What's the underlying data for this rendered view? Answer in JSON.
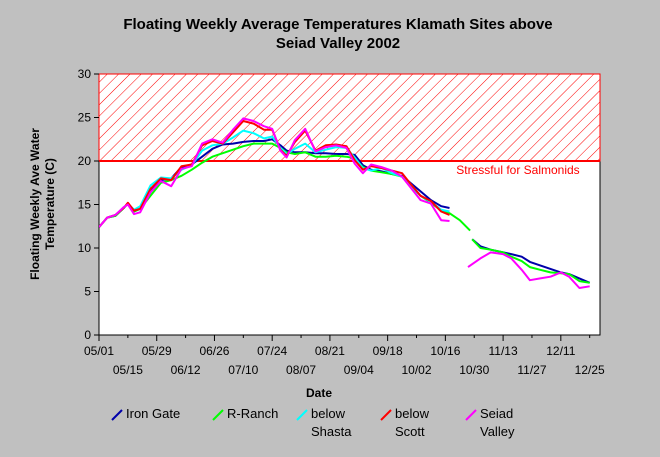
{
  "chart_data": {
    "type": "line",
    "title_line1": "Floating Weekly Average Temperatures Klamath Sites above",
    "title_line2": "Seiad Valley 2002",
    "ylabel_line1": "Floating Weekly Ave Water",
    "ylabel_line2": "Temperature (C)",
    "xlabel": "Date",
    "ylim": [
      0,
      30
    ],
    "yticks": [
      "0",
      "5",
      "10",
      "15",
      "20",
      "25",
      "30"
    ],
    "xlim": [
      0,
      243
    ],
    "xticks_upper": [
      {
        "label": "05/01",
        "day": 0
      },
      {
        "label": "05/29",
        "day": 28
      },
      {
        "label": "06/26",
        "day": 56
      },
      {
        "label": "07/24",
        "day": 84
      },
      {
        "label": "08/21",
        "day": 112
      },
      {
        "label": "09/18",
        "day": 140
      },
      {
        "label": "10/16",
        "day": 168
      },
      {
        "label": "11/13",
        "day": 196
      },
      {
        "label": "12/11",
        "day": 224
      }
    ],
    "xticks_lower": [
      {
        "label": "05/15",
        "day": 14
      },
      {
        "label": "06/12",
        "day": 42
      },
      {
        "label": "07/10",
        "day": 70
      },
      {
        "label": "08/07",
        "day": 98
      },
      {
        "label": "09/04",
        "day": 126
      },
      {
        "label": "10/02",
        "day": 154
      },
      {
        "label": "10/30",
        "day": 182
      },
      {
        "label": "11/27",
        "day": 210
      },
      {
        "label": "12/25",
        "day": 238
      }
    ],
    "threshold": {
      "value": 20,
      "label": "Stressful for Salmonids",
      "color": "#ff0000"
    },
    "grid": false,
    "legend_position": "bottom",
    "series": [
      {
        "name": "Iron Gate",
        "name_line2": "",
        "color": "#0000aa",
        "segments": [
          [
            [
              0,
              12.4
            ],
            [
              4,
              13.5
            ],
            [
              8,
              13.7
            ],
            [
              12,
              14.6
            ],
            [
              14,
              15.1
            ],
            [
              17,
              14.2
            ],
            [
              20,
              14.5
            ],
            [
              25,
              16.5
            ],
            [
              30,
              17.8
            ],
            [
              35,
              18.0
            ],
            [
              40,
              19.3
            ],
            [
              45,
              19.6
            ],
            [
              50,
              20.5
            ],
            [
              55,
              21.4
            ],
            [
              60,
              21.9
            ],
            [
              65,
              22.0
            ],
            [
              70,
              22.2
            ],
            [
              75,
              22.3
            ],
            [
              80,
              22.3
            ],
            [
              84,
              22.5
            ],
            [
              88,
              21.8
            ],
            [
              91,
              21.2
            ],
            [
              95,
              21.0
            ],
            [
              100,
              21.0
            ],
            [
              105,
              20.9
            ],
            [
              110,
              20.9
            ],
            [
              115,
              20.8
            ],
            [
              120,
              20.8
            ],
            [
              124,
              20.7
            ],
            [
              128,
              19.5
            ],
            [
              132,
              19.0
            ],
            [
              137,
              18.8
            ],
            [
              142,
              18.5
            ],
            [
              147,
              18.3
            ],
            [
              151,
              17.5
            ],
            [
              156,
              16.5
            ],
            [
              161,
              15.5
            ],
            [
              166,
              14.8
            ],
            [
              170,
              14.6
            ]
          ],
          [
            [
              181,
              11.0
            ],
            [
              185,
              10.2
            ],
            [
              190,
              9.8
            ],
            [
              196,
              9.5
            ],
            [
              200,
              9.3
            ],
            [
              205,
              9.0
            ],
            [
              209,
              8.4
            ],
            [
              214,
              8.0
            ],
            [
              219,
              7.6
            ],
            [
              224,
              7.2
            ],
            [
              228,
              7.0
            ],
            [
              233,
              6.5
            ],
            [
              238,
              6.0
            ]
          ]
        ]
      },
      {
        "name": "R-Ranch",
        "name_line2": "",
        "color": "#00ff00",
        "segments": [
          [
            [
              0,
              12.4
            ],
            [
              4,
              13.5
            ],
            [
              8,
              13.7
            ],
            [
              12,
              14.6
            ],
            [
              14,
              15.1
            ],
            [
              17,
              14.2
            ],
            [
              20,
              14.5
            ],
            [
              25,
              16.0
            ],
            [
              30,
              17.5
            ],
            [
              35,
              17.8
            ],
            [
              40,
              18.3
            ],
            [
              45,
              19.0
            ],
            [
              50,
              19.8
            ],
            [
              55,
              20.5
            ],
            [
              60,
              20.9
            ],
            [
              65,
              21.3
            ],
            [
              70,
              21.7
            ],
            [
              75,
              22.0
            ],
            [
              80,
              22.0
            ],
            [
              84,
              22.0
            ],
            [
              88,
              21.5
            ],
            [
              91,
              21.0
            ],
            [
              95,
              20.8
            ],
            [
              100,
              21.0
            ],
            [
              105,
              20.5
            ],
            [
              110,
              20.5
            ],
            [
              115,
              20.6
            ],
            [
              120,
              20.5
            ],
            [
              124,
              20.3
            ],
            [
              128,
              19.3
            ],
            [
              132,
              18.9
            ],
            [
              137,
              18.7
            ],
            [
              142,
              18.5
            ],
            [
              147,
              18.2
            ],
            [
              151,
              17.2
            ],
            [
              156,
              16.0
            ],
            [
              161,
              15.2
            ],
            [
              166,
              14.3
            ],
            [
              170,
              14.0
            ],
            [
              175,
              13.2
            ],
            [
              180,
              12.0
            ]
          ],
          [
            [
              181,
              11.0
            ],
            [
              185,
              10.0
            ],
            [
              190,
              9.8
            ],
            [
              196,
              9.5
            ],
            [
              200,
              9.0
            ],
            [
              205,
              8.5
            ],
            [
              209,
              7.8
            ],
            [
              214,
              7.5
            ],
            [
              219,
              7.2
            ],
            [
              224,
              7.1
            ],
            [
              228,
              7.0
            ],
            [
              233,
              6.2
            ],
            [
              238,
              6.0
            ]
          ]
        ]
      },
      {
        "name": "below",
        "name_line2": "Shasta",
        "color": "#00ffff",
        "segments": [
          [
            [
              0,
              12.4
            ],
            [
              4,
              13.5
            ],
            [
              8,
              13.8
            ],
            [
              12,
              14.6
            ],
            [
              14,
              15.1
            ],
            [
              17,
              14.4
            ],
            [
              20,
              14.8
            ],
            [
              25,
              17.2
            ],
            [
              30,
              18.1
            ],
            [
              35,
              18.0
            ],
            [
              40,
              19.0
            ],
            [
              45,
              19.5
            ],
            [
              50,
              21.2
            ],
            [
              55,
              21.8
            ],
            [
              60,
              22.0
            ],
            [
              65,
              22.7
            ],
            [
              70,
              23.5
            ],
            [
              75,
              23.2
            ],
            [
              80,
              22.6
            ],
            [
              84,
              22.8
            ],
            [
              88,
              21.5
            ],
            [
              91,
              20.8
            ],
            [
              95,
              21.4
            ],
            [
              100,
              22.0
            ],
            [
              105,
              21.0
            ],
            [
              110,
              21.3
            ],
            [
              115,
              21.6
            ],
            [
              120,
              21.5
            ],
            [
              124,
              20.4
            ],
            [
              128,
              19.2
            ],
            [
              132,
              18.9
            ],
            [
              137,
              19.2
            ],
            [
              142,
              18.6
            ],
            [
              147,
              18.2
            ],
            [
              151,
              17.2
            ],
            [
              156,
              16.0
            ],
            [
              161,
              15.3
            ],
            [
              166,
              14.4
            ],
            [
              170,
              14.2
            ]
          ]
        ]
      },
      {
        "name": "below",
        "name_line2": "Scott",
        "color": "#ff0000",
        "segments": [
          [
            [
              0,
              12.4
            ],
            [
              4,
              13.5
            ],
            [
              8,
              13.8
            ],
            [
              12,
              14.6
            ],
            [
              14,
              15.2
            ],
            [
              17,
              14.3
            ],
            [
              20,
              14.5
            ],
            [
              25,
              16.8
            ],
            [
              30,
              18.0
            ],
            [
              35,
              17.8
            ],
            [
              40,
              19.4
            ],
            [
              45,
              19.6
            ],
            [
              50,
              21.8
            ],
            [
              55,
              22.3
            ],
            [
              60,
              22.0
            ],
            [
              65,
              23.3
            ],
            [
              70,
              24.6
            ],
            [
              75,
              24.3
            ],
            [
              80,
              23.6
            ],
            [
              84,
              23.6
            ],
            [
              88,
              21.3
            ],
            [
              91,
              20.6
            ],
            [
              95,
              22.2
            ],
            [
              100,
              23.5
            ],
            [
              105,
              21.2
            ],
            [
              110,
              21.8
            ],
            [
              115,
              21.9
            ],
            [
              120,
              21.7
            ],
            [
              124,
              20.1
            ],
            [
              128,
              19.0
            ],
            [
              132,
              19.4
            ],
            [
              137,
              19.2
            ],
            [
              142,
              18.9
            ],
            [
              147,
              18.6
            ],
            [
              151,
              17.4
            ],
            [
              156,
              16.0
            ],
            [
              161,
              15.4
            ],
            [
              166,
              14.2
            ],
            [
              170,
              13.8
            ]
          ]
        ]
      },
      {
        "name": "Seiad",
        "name_line2": "Valley",
        "color": "#ff00ff",
        "segments": [
          [
            [
              0,
              12.4
            ],
            [
              4,
              13.5
            ],
            [
              8,
              13.8
            ],
            [
              12,
              14.7
            ],
            [
              14,
              15.0
            ],
            [
              17,
              13.9
            ],
            [
              20,
              14.1
            ],
            [
              25,
              16.4
            ],
            [
              30,
              17.7
            ],
            [
              35,
              17.1
            ],
            [
              40,
              19.1
            ],
            [
              45,
              19.4
            ],
            [
              50,
              22.0
            ],
            [
              55,
              22.5
            ],
            [
              60,
              22.1
            ],
            [
              65,
              23.6
            ],
            [
              70,
              24.9
            ],
            [
              75,
              24.6
            ],
            [
              80,
              24.0
            ],
            [
              84,
              23.7
            ],
            [
              88,
              21.2
            ],
            [
              91,
              20.4
            ],
            [
              95,
              22.4
            ],
            [
              100,
              23.7
            ],
            [
              105,
              21.1
            ],
            [
              110,
              21.6
            ],
            [
              115,
              21.8
            ],
            [
              120,
              21.5
            ],
            [
              124,
              19.7
            ],
            [
              128,
              18.6
            ],
            [
              132,
              19.6
            ],
            [
              137,
              19.3
            ],
            [
              142,
              18.9
            ],
            [
              147,
              18.2
            ],
            [
              151,
              17.0
            ],
            [
              156,
              15.5
            ],
            [
              161,
              15.1
            ],
            [
              166,
              13.2
            ],
            [
              170,
              13.1
            ]
          ],
          [
            [
              179,
              7.8
            ],
            [
              185,
              8.8
            ],
            [
              190,
              9.5
            ],
            [
              196,
              9.3
            ],
            [
              200,
              8.8
            ],
            [
              205,
              7.5
            ],
            [
              209,
              6.3
            ],
            [
              214,
              6.5
            ],
            [
              219,
              6.7
            ],
            [
              224,
              7.2
            ],
            [
              228,
              6.7
            ],
            [
              233,
              5.4
            ],
            [
              238,
              5.6
            ]
          ]
        ]
      }
    ]
  }
}
